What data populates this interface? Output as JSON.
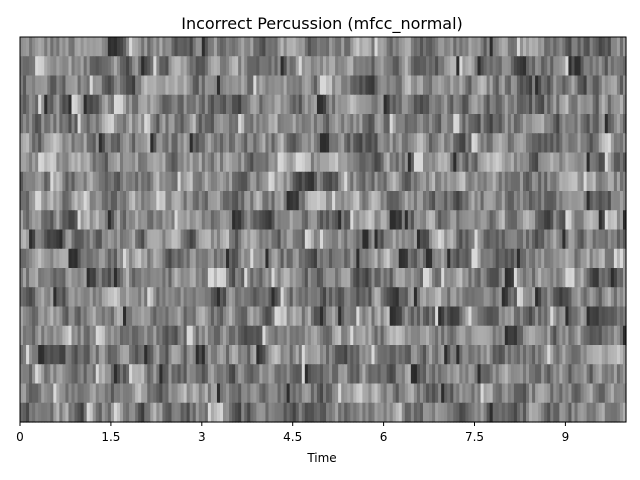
{
  "chart_data": {
    "type": "heatmap",
    "title": "Incorrect Percussion (mfcc_normal)",
    "xlabel": "Time",
    "ylabel": "",
    "colormap": "gray",
    "xlim": [
      0,
      10
    ],
    "xticks": [
      0,
      1.5,
      3,
      4.5,
      6,
      7.5,
      9
    ],
    "xtick_labels": [
      "0",
      "1.5",
      "3",
      "4.5",
      "6",
      "7.5",
      "9"
    ],
    "yticks": [],
    "n_coefficients": 20,
    "n_frames": 200,
    "grid": false,
    "legend": "none",
    "colors": {
      "frame": "#000000",
      "background": "#ffffff"
    }
  }
}
